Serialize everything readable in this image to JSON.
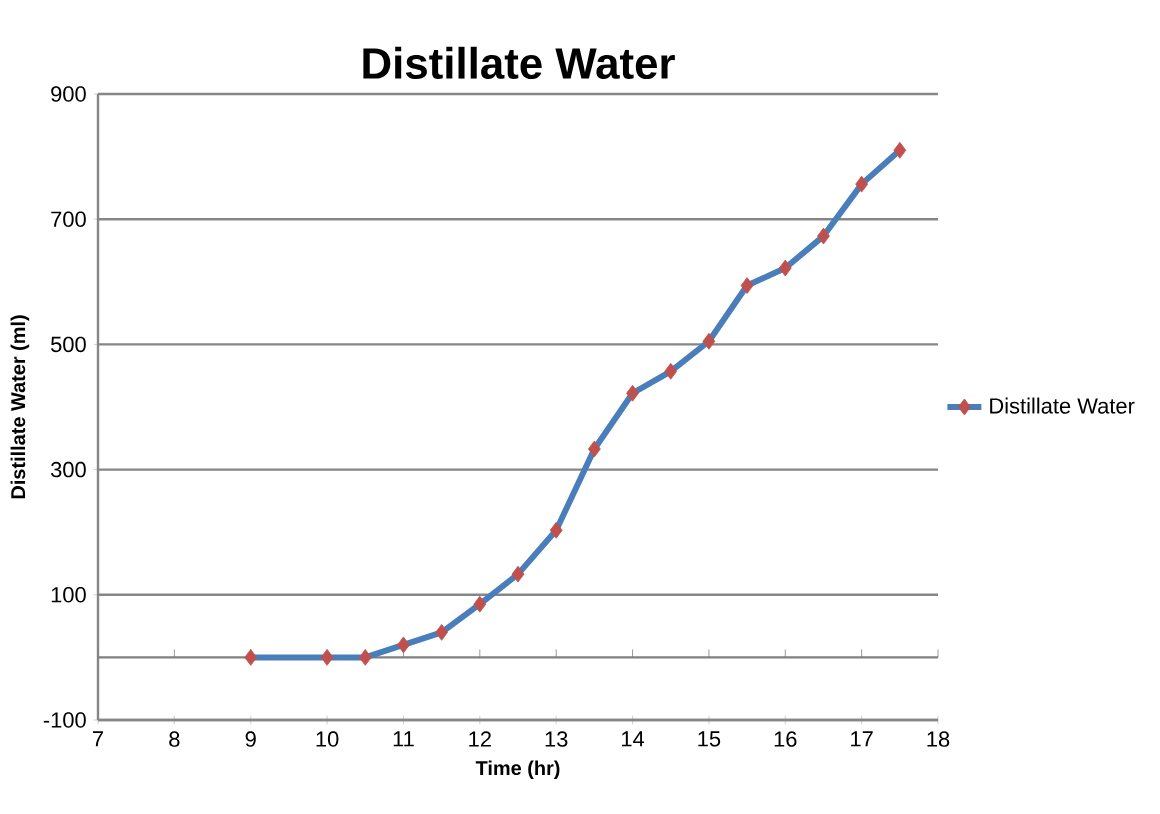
{
  "chart_data": {
    "type": "line",
    "title": "Distillate Water",
    "xlabel": "Time (hr)",
    "ylabel": "Distillate Water (ml)",
    "xlim": [
      7,
      18
    ],
    "xticks": [
      7,
      8,
      9,
      10,
      11,
      12,
      13,
      14,
      15,
      16,
      17,
      18
    ],
    "ylim": [
      -100,
      900
    ],
    "yticks": [
      -100,
      100,
      300,
      500,
      700,
      900
    ],
    "grid": "y",
    "legend": "right",
    "marker": "diamond",
    "line_style": "solid",
    "ref_lines": [
      {
        "axis": "y",
        "value": 0,
        "color": "#808080"
      }
    ],
    "series": [
      {
        "name": "Distillate Water",
        "color": "#4a7ebb",
        "x": [
          9,
          10,
          10.5,
          11,
          11.5,
          12,
          12.5,
          13,
          13.5,
          14,
          14.5,
          15,
          15.5,
          16,
          16.5,
          17,
          17.5
        ],
        "values": [
          0,
          0,
          0,
          20,
          40,
          85,
          133,
          203,
          333,
          422,
          457,
          505,
          594,
          622,
          673,
          756,
          810
        ]
      }
    ]
  }
}
